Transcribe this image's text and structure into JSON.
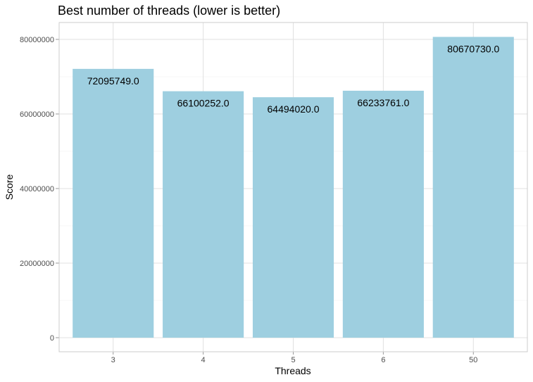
{
  "chart_data": {
    "type": "bar",
    "title": "Best number of threads (lower is better)",
    "xlabel": "Threads",
    "ylabel": "Score",
    "categories": [
      "3",
      "4",
      "5",
      "6",
      "50"
    ],
    "values": [
      72095749.0,
      66100252.0,
      64494020.0,
      66233761.0,
      80670730.0
    ],
    "labels": [
      "72095749.0",
      "66100252.0",
      "64494020.0",
      "66233761.0",
      "80670730.0"
    ],
    "ylim": [
      0,
      84700000
    ],
    "yticks": [
      0,
      20000000,
      40000000,
      60000000,
      80000000
    ],
    "ytick_labels": [
      "0",
      "20000000",
      "40000000",
      "60000000",
      "80000000"
    ],
    "grid": true,
    "colors": {
      "bar": "#9ecfe0",
      "grid_major": "#e0e0e0",
      "grid_minor": "#f0f0f0",
      "panel_border": "#cccccc"
    }
  }
}
